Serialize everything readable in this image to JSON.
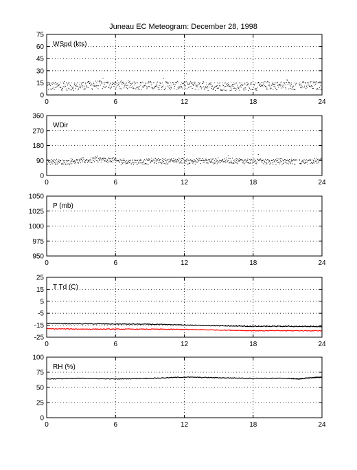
{
  "title": "Juneau EC Meteogram:   December 28, 1998",
  "chart_data": [
    {
      "type": "scatter",
      "label": "WSpd (kts)",
      "x_ticks": [
        0,
        6,
        12,
        18,
        24
      ],
      "y_ticks": [
        0,
        15,
        30,
        45,
        60,
        75
      ],
      "xlim": [
        0,
        24
      ],
      "ylim": [
        0,
        75
      ],
      "grid": true,
      "series": [
        {
          "color": "#000000",
          "points_per_hour": 24,
          "y_by_hour": [
            11,
            11,
            11,
            12,
            13,
            13,
            13,
            13,
            12,
            12,
            12,
            12,
            12,
            12,
            11,
            11,
            11,
            11,
            11,
            12,
            12,
            12,
            12,
            12
          ]
        }
      ]
    },
    {
      "type": "scatter",
      "label": "WDir",
      "x_ticks": [
        0,
        6,
        12,
        18,
        24
      ],
      "y_ticks": [
        0,
        90,
        180,
        270,
        360
      ],
      "xlim": [
        0,
        24
      ],
      "ylim": [
        0,
        360
      ],
      "grid": true,
      "series": [
        {
          "color": "#000000",
          "points_per_hour": 24,
          "y_by_hour": [
            85,
            82,
            88,
            92,
            98,
            95,
            88,
            84,
            86,
            90,
            88,
            92,
            86,
            90,
            88,
            92,
            90,
            88,
            86,
            84,
            88,
            86,
            84,
            90
          ]
        }
      ]
    },
    {
      "type": "line",
      "label": "P (mb)",
      "x_ticks": [
        0,
        6,
        12,
        18,
        24
      ],
      "y_ticks": [
        950,
        975,
        1000,
        1025,
        1050
      ],
      "xlim": [
        0,
        24
      ],
      "ylim": [
        950,
        1050
      ],
      "grid": true,
      "series": []
    },
    {
      "type": "line",
      "label": "T Td (C)",
      "x_ticks": [
        0,
        6,
        12,
        18,
        24
      ],
      "y_ticks": [
        -25,
        -15,
        -5,
        5,
        15,
        25
      ],
      "xlim": [
        0,
        24
      ],
      "ylim": [
        -25,
        25
      ],
      "grid": true,
      "series": [
        {
          "color": "#000000",
          "x": [
            0,
            3,
            6,
            9,
            12,
            15,
            18,
            21,
            24
          ],
          "y": [
            -13.5,
            -13.8,
            -14.0,
            -14.2,
            -14.8,
            -15.5,
            -16.0,
            -16.0,
            -16.2
          ]
        },
        {
          "color": "#ff0000",
          "x": [
            0,
            3,
            6,
            9,
            12,
            15,
            18,
            21,
            24
          ],
          "y": [
            -18.0,
            -18.2,
            -18.3,
            -18.3,
            -18.5,
            -19.0,
            -19.6,
            -19.6,
            -19.6
          ]
        }
      ]
    },
    {
      "type": "line",
      "label": "RH (%)",
      "x_ticks": [
        0,
        6,
        12,
        18,
        24
      ],
      "y_ticks": [
        0,
        25,
        50,
        75,
        100
      ],
      "xlim": [
        0,
        24
      ],
      "ylim": [
        0,
        100
      ],
      "grid": true,
      "series": [
        {
          "color": "#000000",
          "x": [
            0,
            3,
            6,
            9,
            12,
            15,
            18,
            21,
            22,
            23,
            24
          ],
          "y": [
            64,
            65,
            64,
            65,
            67,
            66,
            65,
            65,
            64,
            66,
            67
          ]
        }
      ]
    }
  ]
}
